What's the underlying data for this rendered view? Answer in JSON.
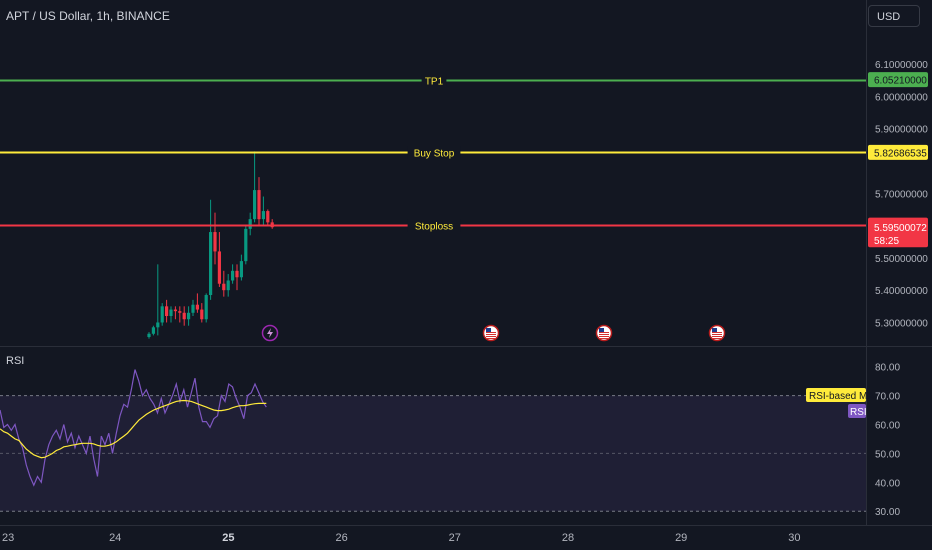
{
  "header": {
    "symbol": "APT / US Dollar, 1h, BINANCE",
    "currency": "USD"
  },
  "price_axis": {
    "ticks": [
      "6.10000000",
      "6.00000000",
      "5.90000000",
      "5.70000000",
      "5.50000000",
      "5.40000000",
      "5.30000000"
    ],
    "range": [
      5.255,
      6.15
    ]
  },
  "levels": [
    {
      "name": "TP1",
      "value": 6.0521,
      "label": "6.05210000",
      "color": "#4caf50",
      "text_color": "#ffeb3b"
    },
    {
      "name": "Buy Stop",
      "value": 5.82686535,
      "label": "5.82686535",
      "color": "#ffeb3b",
      "text_color": "#ffeb3b"
    },
    {
      "name": "Stoploss",
      "value": 5.60154795,
      "label": "5.60154795",
      "color": "#f23645",
      "text_color": "#ffeb3b"
    }
  ],
  "last_price": {
    "value": 5.595,
    "label": "5.59500072",
    "countdown": "58:25",
    "color": "#f23645"
  },
  "colors": {
    "up": "#089981",
    "down": "#f23645",
    "rsi": "#7e57c2",
    "rsi_ma": "#ffeb3b"
  },
  "rsi_panel": {
    "title": "RSI",
    "ticks": [
      "80.00",
      "70.00",
      "60.00",
      "50.00",
      "40.00",
      "30.00"
    ],
    "range": [
      28,
      83
    ],
    "band": [
      30,
      70
    ],
    "middle": 50,
    "ma_label": "RSI-based MA",
    "rsi_label": "RSI"
  },
  "time_axis": {
    "labels": [
      "23",
      "24",
      "25",
      "26",
      "27",
      "28",
      "29",
      "30"
    ]
  },
  "events": [
    {
      "icon": "lightning-icon",
      "time_label": "25"
    },
    {
      "icon": "us-flag-icon",
      "time_label": "27"
    },
    {
      "icon": "us-flag-icon",
      "time_label": "28"
    },
    {
      "icon": "us-flag-icon",
      "time_label": "29"
    }
  ],
  "chart_data": {
    "type": "candlestick",
    "title": "APT / US Dollar, 1h, BINANCE",
    "candles": [
      {
        "o": 5.255,
        "h": 5.27,
        "l": 5.25,
        "c": 5.265
      },
      {
        "o": 5.265,
        "h": 5.29,
        "l": 5.26,
        "c": 5.285
      },
      {
        "o": 5.285,
        "h": 5.48,
        "l": 5.26,
        "c": 5.3
      },
      {
        "o": 5.3,
        "h": 5.36,
        "l": 5.29,
        "c": 5.35
      },
      {
        "o": 5.35,
        "h": 5.37,
        "l": 5.3,
        "c": 5.32
      },
      {
        "o": 5.32,
        "h": 5.35,
        "l": 5.3,
        "c": 5.34
      },
      {
        "o": 5.34,
        "h": 5.35,
        "l": 5.31,
        "c": 5.335
      },
      {
        "o": 5.335,
        "h": 5.35,
        "l": 5.3,
        "c": 5.33
      },
      {
        "o": 5.33,
        "h": 5.35,
        "l": 5.29,
        "c": 5.31
      },
      {
        "o": 5.31,
        "h": 5.35,
        "l": 5.29,
        "c": 5.33
      },
      {
        "o": 5.33,
        "h": 5.37,
        "l": 5.32,
        "c": 5.355
      },
      {
        "o": 5.355,
        "h": 5.39,
        "l": 5.33,
        "c": 5.34
      },
      {
        "o": 5.34,
        "h": 5.36,
        "l": 5.3,
        "c": 5.31
      },
      {
        "o": 5.31,
        "h": 5.39,
        "l": 5.3,
        "c": 5.385
      },
      {
        "o": 5.385,
        "h": 5.68,
        "l": 5.37,
        "c": 5.58
      },
      {
        "o": 5.58,
        "h": 5.64,
        "l": 5.48,
        "c": 5.52
      },
      {
        "o": 5.52,
        "h": 5.58,
        "l": 5.41,
        "c": 5.42
      },
      {
        "o": 5.42,
        "h": 5.46,
        "l": 5.38,
        "c": 5.4
      },
      {
        "o": 5.4,
        "h": 5.45,
        "l": 5.38,
        "c": 5.43
      },
      {
        "o": 5.43,
        "h": 5.48,
        "l": 5.42,
        "c": 5.46
      },
      {
        "o": 5.46,
        "h": 5.48,
        "l": 5.4,
        "c": 5.44
      },
      {
        "o": 5.44,
        "h": 5.51,
        "l": 5.43,
        "c": 5.49
      },
      {
        "o": 5.49,
        "h": 5.6,
        "l": 5.48,
        "c": 5.59
      },
      {
        "o": 5.59,
        "h": 5.64,
        "l": 5.57,
        "c": 5.62
      },
      {
        "o": 5.62,
        "h": 5.83,
        "l": 5.61,
        "c": 5.71
      },
      {
        "o": 5.71,
        "h": 5.75,
        "l": 5.6,
        "c": 5.62
      },
      {
        "o": 5.62,
        "h": 5.69,
        "l": 5.6,
        "c": 5.645
      },
      {
        "o": 5.645,
        "h": 5.65,
        "l": 5.6,
        "c": 5.61
      },
      {
        "o": 5.61,
        "h": 5.62,
        "l": 5.59,
        "c": 5.595
      }
    ],
    "rsi": [
      65,
      59,
      60,
      58,
      60,
      55,
      52,
      46,
      42,
      39,
      42,
      40,
      48,
      53,
      56,
      58,
      55,
      60,
      54,
      57,
      52,
      56,
      53,
      50,
      56,
      48,
      42,
      56,
      53,
      57,
      50,
      57,
      63,
      67,
      66,
      72,
      79,
      75,
      70,
      72,
      69,
      67,
      64,
      69,
      64,
      67,
      70,
      74,
      68,
      72,
      66,
      71,
      76,
      66,
      61,
      61,
      59,
      62,
      63,
      70,
      68,
      74,
      73,
      69,
      66,
      62,
      70,
      71,
      74,
      71,
      68,
      66
    ],
    "rsi_ma": [
      58.5,
      57.5,
      57,
      56,
      55,
      54.5,
      53,
      51.5,
      50.5,
      49.5,
      49,
      48.5,
      48.7,
      49.3,
      50,
      51,
      51.5,
      52.3,
      52.5,
      52.8,
      53,
      53.3,
      53.5,
      53.5,
      53.5,
      53.3,
      52.8,
      52.5,
      52.5,
      52.8,
      53.3,
      54,
      55,
      56,
      57,
      58.5,
      60,
      61.5,
      62.5,
      63.5,
      64.3,
      65,
      65.5,
      66,
      66.5,
      67,
      67.5,
      68,
      68.2,
      68.3,
      68.2,
      68,
      67.5,
      67,
      66.5,
      66,
      65.5,
      65,
      64.8,
      64.8,
      65,
      65.3,
      65.8,
      66.2,
      66.5,
      66.5,
      66.7,
      67,
      67.2,
      67.3,
      67.3,
      67.3
    ]
  }
}
